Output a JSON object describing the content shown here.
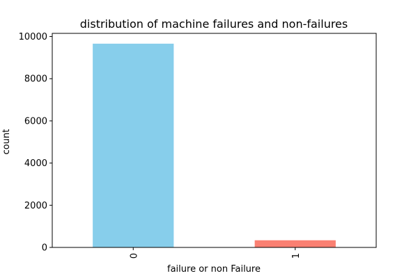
{
  "chart_data": {
    "type": "bar",
    "title": "distribution of machine failures and non-failures",
    "xlabel": "failure or non Failure",
    "ylabel": "count",
    "categories": [
      "0",
      "1"
    ],
    "values": [
      9661,
      339
    ],
    "ylim": [
      0,
      10150
    ],
    "yticks": [
      0,
      2000,
      4000,
      6000,
      8000,
      10000
    ],
    "ytick_labels": [
      "0",
      "2000",
      "4000",
      "6000",
      "8000",
      "10000"
    ],
    "xtick_rotation": "vertical",
    "grid": false,
    "legend": "none",
    "colors": [
      "#87ceeb",
      "#fa8072"
    ]
  }
}
